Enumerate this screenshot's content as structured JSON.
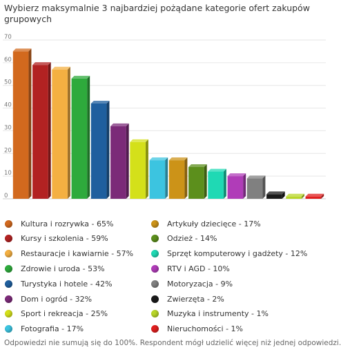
{
  "chart_data": {
    "type": "bar",
    "title": "Wybierz maksymalnie 3 najbardziej pożądane kategorie ofert zakupów grupowych",
    "ylim": [
      0,
      70
    ],
    "yticks": [
      0,
      10,
      20,
      30,
      40,
      50,
      60,
      70
    ],
    "grid": true,
    "legend_position": "bottom",
    "categories": [
      "Kultura i rozrywka - 65%",
      "Kursy i szkolenia - 59%",
      "Restauracje i kawiarnie - 57%",
      "Zdrowie i uroda - 53%",
      "Turystyka i hotele - 42%",
      "Dom i ogród - 32%",
      "Sport i rekreacja - 25%",
      "Fotografia - 17%",
      "Artykuły dziecięce - 17%",
      "Odzież - 14%",
      "Sprzęt komputerowy i gadżety - 12%",
      "RTV i AGD - 10%",
      "Motoryzacja - 9%",
      "Zwierzęta - 2%",
      "Muzyka i instrumenty - 1%",
      "Nieruchomości - 1%"
    ],
    "values": [
      65,
      59,
      57,
      53,
      42,
      32,
      25,
      17,
      17,
      14,
      12,
      10,
      9,
      2,
      1,
      1
    ],
    "colors": [
      "#d2691e",
      "#b22222",
      "#f4b042",
      "#2eaa3c",
      "#1f5f9e",
      "#7b2a78",
      "#d4e01a",
      "#3cc4e0",
      "#cc9318",
      "#5c8f1c",
      "#1fd9b4",
      "#b03cb8",
      "#808080",
      "#1a1a1a",
      "#b8d629",
      "#e01e1e"
    ]
  },
  "note": "Odpowiedzi nie sumują się do 100%. Respondent mógł udzielić więcej niż jednej odpowiedzi."
}
